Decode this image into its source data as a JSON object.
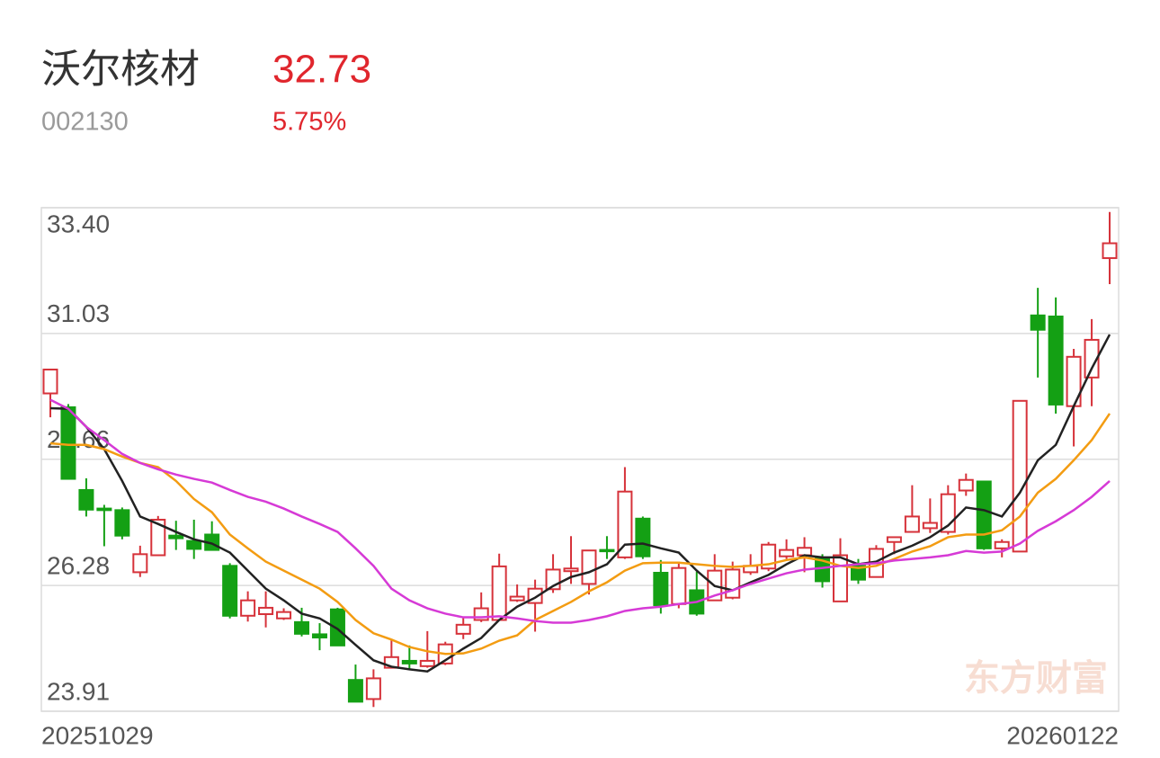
{
  "header": {
    "name": "沃尔核材",
    "code": "002130",
    "price": "32.73",
    "change": "5.75%"
  },
  "watermark": "东方财富",
  "chart_data": {
    "type": "candlestick",
    "categories": [
      "20251029",
      null,
      null,
      null,
      null,
      null,
      null,
      null,
      null,
      null,
      null,
      null,
      null,
      null,
      null,
      null,
      null,
      null,
      null,
      null,
      null,
      null,
      null,
      null,
      null,
      null,
      null,
      null,
      null,
      null,
      null,
      null,
      null,
      null,
      null,
      null,
      null,
      null,
      null,
      null,
      null,
      null,
      null,
      null,
      null,
      null,
      null,
      null,
      null,
      null,
      null,
      null,
      null,
      null,
      null,
      null,
      null,
      null,
      null,
      "20260122"
    ],
    "open": [
      29.9,
      29.64,
      28.08,
      27.73,
      27.7,
      26.53,
      26.85,
      27.22,
      27.12,
      27.24,
      26.65,
      25.71,
      25.74,
      25.66,
      25.59,
      25.36,
      25.83,
      24.5,
      24.14,
      24.73,
      24.86,
      24.76,
      24.81,
      25.37,
      25.63,
      25.63,
      26.0,
      25.95,
      26.21,
      26.55,
      26.31,
      26.95,
      26.81,
      27.54,
      26.52,
      25.93,
      26.19,
      26.0,
      26.05,
      26.53,
      26.6,
      26.83,
      26.85,
      26.8,
      25.98,
      26.65,
      26.44,
      27.1,
      27.29,
      27.36,
      27.29,
      28.07,
      28.24,
      26.98,
      26.92,
      31.37,
      31.35,
      29.66,
      30.2,
      32.45
    ],
    "high": [
      30.35,
      29.7,
      28.3,
      27.8,
      27.75,
      27.03,
      27.59,
      27.5,
      27.52,
      27.49,
      26.7,
      26.17,
      26.17,
      25.85,
      25.86,
      25.57,
      25.86,
      24.79,
      24.7,
      25.25,
      25.15,
      25.42,
      25.22,
      25.69,
      26.15,
      26.88,
      26.3,
      26.39,
      26.87,
      27.21,
      26.95,
      27.21,
      28.51,
      27.58,
      26.76,
      26.73,
      26.54,
      26.87,
      26.73,
      26.87,
      27.1,
      27.15,
      27.19,
      26.87,
      27.17,
      26.78,
      27.04,
      27.2,
      28.17,
      27.92,
      28.17,
      28.39,
      28.24,
      27.15,
      29.76,
      31.89,
      31.71,
      30.74,
      31.3,
      33.32
    ],
    "low": [
      29.45,
      28.29,
      27.58,
      27.02,
      27.15,
      26.44,
      26.85,
      26.95,
      26.78,
      26.95,
      25.66,
      25.6,
      25.49,
      25.63,
      25.32,
      25.06,
      25.15,
      24.09,
      23.99,
      24.73,
      24.71,
      24.73,
      24.78,
      25.27,
      25.59,
      25.63,
      25.97,
      25.41,
      26.14,
      26.31,
      26.11,
      26.78,
      26.78,
      26.78,
      25.75,
      25.85,
      25.71,
      26.0,
      26.02,
      26.48,
      26.55,
      26.78,
      26.53,
      26.24,
      25.98,
      26.31,
      26.43,
      26.87,
      27.29,
      27.27,
      27.24,
      27.97,
      26.95,
      26.81,
      26.92,
      30.2,
      29.52,
      28.9,
      29.66,
      31.96
    ],
    "close": [
      30.35,
      28.29,
      27.71,
      27.7,
      27.22,
      26.87,
      27.52,
      27.17,
      26.97,
      26.95,
      25.71,
      26.0,
      25.86,
      25.78,
      25.37,
      25.3,
      25.15,
      24.09,
      24.53,
      24.93,
      24.81,
      24.86,
      25.17,
      25.54,
      25.85,
      26.64,
      26.07,
      26.22,
      26.58,
      26.6,
      26.94,
      26.93,
      28.05,
      26.83,
      25.91,
      26.61,
      25.75,
      26.56,
      26.58,
      26.65,
      27.05,
      26.95,
      26.99,
      26.36,
      26.85,
      26.39,
      26.97,
      27.19,
      27.58,
      27.46,
      28.0,
      28.27,
      26.98,
      27.1,
      29.76,
      31.1,
      29.69,
      30.59,
      30.91,
      32.73
    ],
    "up_color": "#d6323a",
    "down_color": "#14a014",
    "series": [
      {
        "color": "#222222",
        "values": [
          29.62,
          29.61,
          29.27,
          28.85,
          28.25,
          27.58,
          27.44,
          27.29,
          27.15,
          27.07,
          26.9,
          26.56,
          26.22,
          26.0,
          25.75,
          25.66,
          25.46,
          25.16,
          24.87,
          24.75,
          24.7,
          24.66,
          24.87,
          25.09,
          25.29,
          25.63,
          25.88,
          26.05,
          26.27,
          26.44,
          26.53,
          26.68,
          27.05,
          27.07,
          26.98,
          26.9,
          26.56,
          26.27,
          26.19,
          26.34,
          26.48,
          26.68,
          26.85,
          26.81,
          26.81,
          26.68,
          26.73,
          26.9,
          27.03,
          27.19,
          27.41,
          27.75,
          27.7,
          27.58,
          28.03,
          28.64,
          28.93,
          29.66,
          30.37,
          31.01
        ]
      },
      {
        "color": "#f39c12",
        "values": [
          28.96,
          28.93,
          28.93,
          28.85,
          28.71,
          28.59,
          28.51,
          28.25,
          27.91,
          27.66,
          27.24,
          26.98,
          26.73,
          26.56,
          26.39,
          26.22,
          25.97,
          25.63,
          25.38,
          25.26,
          25.12,
          25.04,
          24.99,
          25.0,
          25.09,
          25.24,
          25.34,
          25.63,
          25.8,
          25.97,
          26.17,
          26.34,
          26.56,
          26.7,
          26.71,
          26.71,
          26.68,
          26.65,
          26.63,
          26.65,
          26.68,
          26.76,
          26.81,
          26.75,
          26.65,
          26.61,
          26.65,
          26.78,
          26.92,
          27.02,
          27.19,
          27.24,
          27.24,
          27.32,
          27.58,
          28.03,
          28.29,
          28.64,
          29.02,
          29.52
        ]
      },
      {
        "color": "#d63ad6",
        "values": [
          29.78,
          29.61,
          29.27,
          29.02,
          28.76,
          28.59,
          28.47,
          28.37,
          28.29,
          28.22,
          28.08,
          27.95,
          27.86,
          27.73,
          27.58,
          27.44,
          27.29,
          26.98,
          26.65,
          26.22,
          26.0,
          25.85,
          25.75,
          25.68,
          25.68,
          25.7,
          25.66,
          25.61,
          25.58,
          25.58,
          25.63,
          25.7,
          25.8,
          25.85,
          25.88,
          25.93,
          25.97,
          26.09,
          26.19,
          26.31,
          26.41,
          26.51,
          26.58,
          26.61,
          26.65,
          26.68,
          26.7,
          26.75,
          26.78,
          26.81,
          26.85,
          26.93,
          26.9,
          26.92,
          27.07,
          27.31,
          27.49,
          27.7,
          27.95,
          28.25
        ]
      }
    ],
    "ylim": [
      23.91,
      33.4
    ],
    "yticks": [
      23.91,
      26.28,
      28.66,
      31.03,
      {
        "value": 33.4,
        "label": "33.40"
      }
    ],
    "grid": true
  }
}
